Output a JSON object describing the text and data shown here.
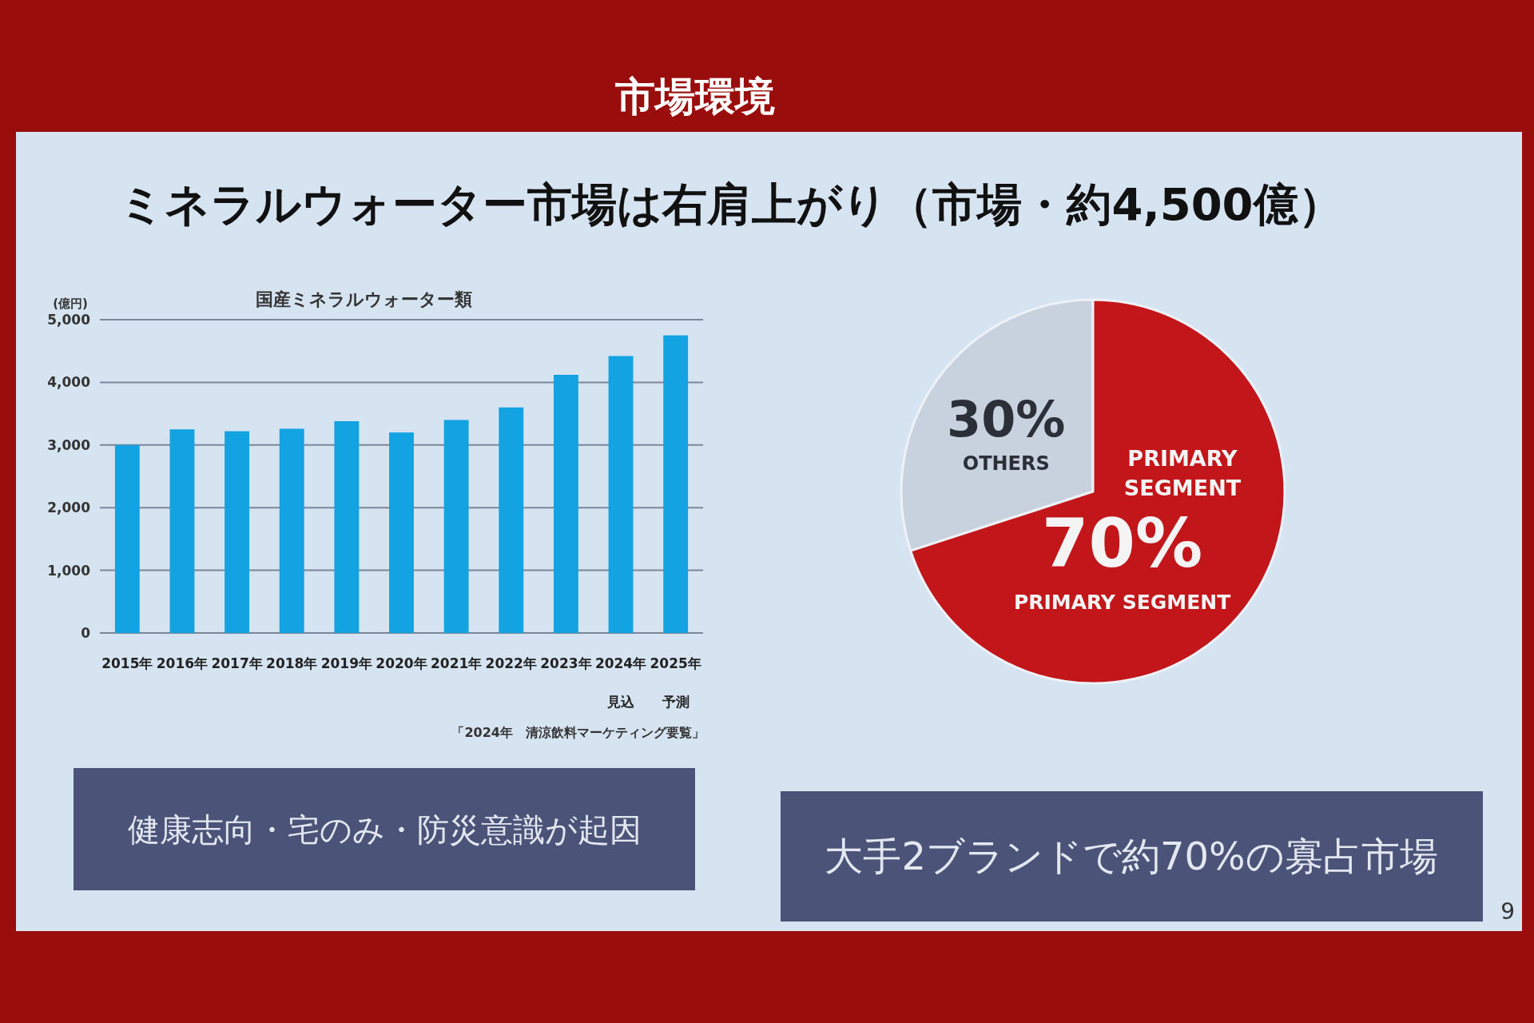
{
  "chart_data": [
    {
      "type": "other",
      "title": "市場環境",
      "subtitle": "ミネラルウォーター市場は右肩上がり（市場・約4,500億）",
      "annotations": [
        "9"
      ]
    },
    {
      "type": "bar",
      "title": "国産ミネラルウォーター類",
      "ylabel": "(億円)",
      "categories": [
        "2015年",
        "2016年",
        "2017年",
        "2018年",
        "2019年",
        "2020年",
        "2021年",
        "2022年",
        "2023年",
        "2024年見込",
        "2025年予測"
      ],
      "values": [
        3000,
        3250,
        3220,
        3260,
        3380,
        3200,
        3400,
        3600,
        4120,
        4420,
        4750
      ],
      "color": "#14a3e2",
      "ylim": [
        0,
        5000
      ],
      "yticks": [
        0,
        {
          "value": 1000,
          "label": "1,000"
        },
        {
          "value": 2000,
          "label": "2,000"
        },
        {
          "value": 3000,
          "label": "3,000"
        },
        {
          "value": 4000,
          "label": "4,000"
        },
        {
          "value": 5000,
          "label": "5,000"
        }
      ],
      "grid": "y",
      "annotations": [
        "「2024年　清涼飲料マーケティング要覧」",
        "健康志向・宅のみ・防災意識が起因"
      ]
    },
    {
      "type": "pie",
      "categories": [
        "OTHERS",
        "PRIMARY SEGMENT"
      ],
      "values": [
        30,
        70
      ],
      "colors": [
        "#c8d2de",
        "#c3161b"
      ],
      "value_labels": [
        "30%",
        "70%"
      ],
      "annotations": [
        "PRIMARY SEGMENT",
        "大手2ブランドで約70%の寡占市場"
      ]
    }
  ]
}
